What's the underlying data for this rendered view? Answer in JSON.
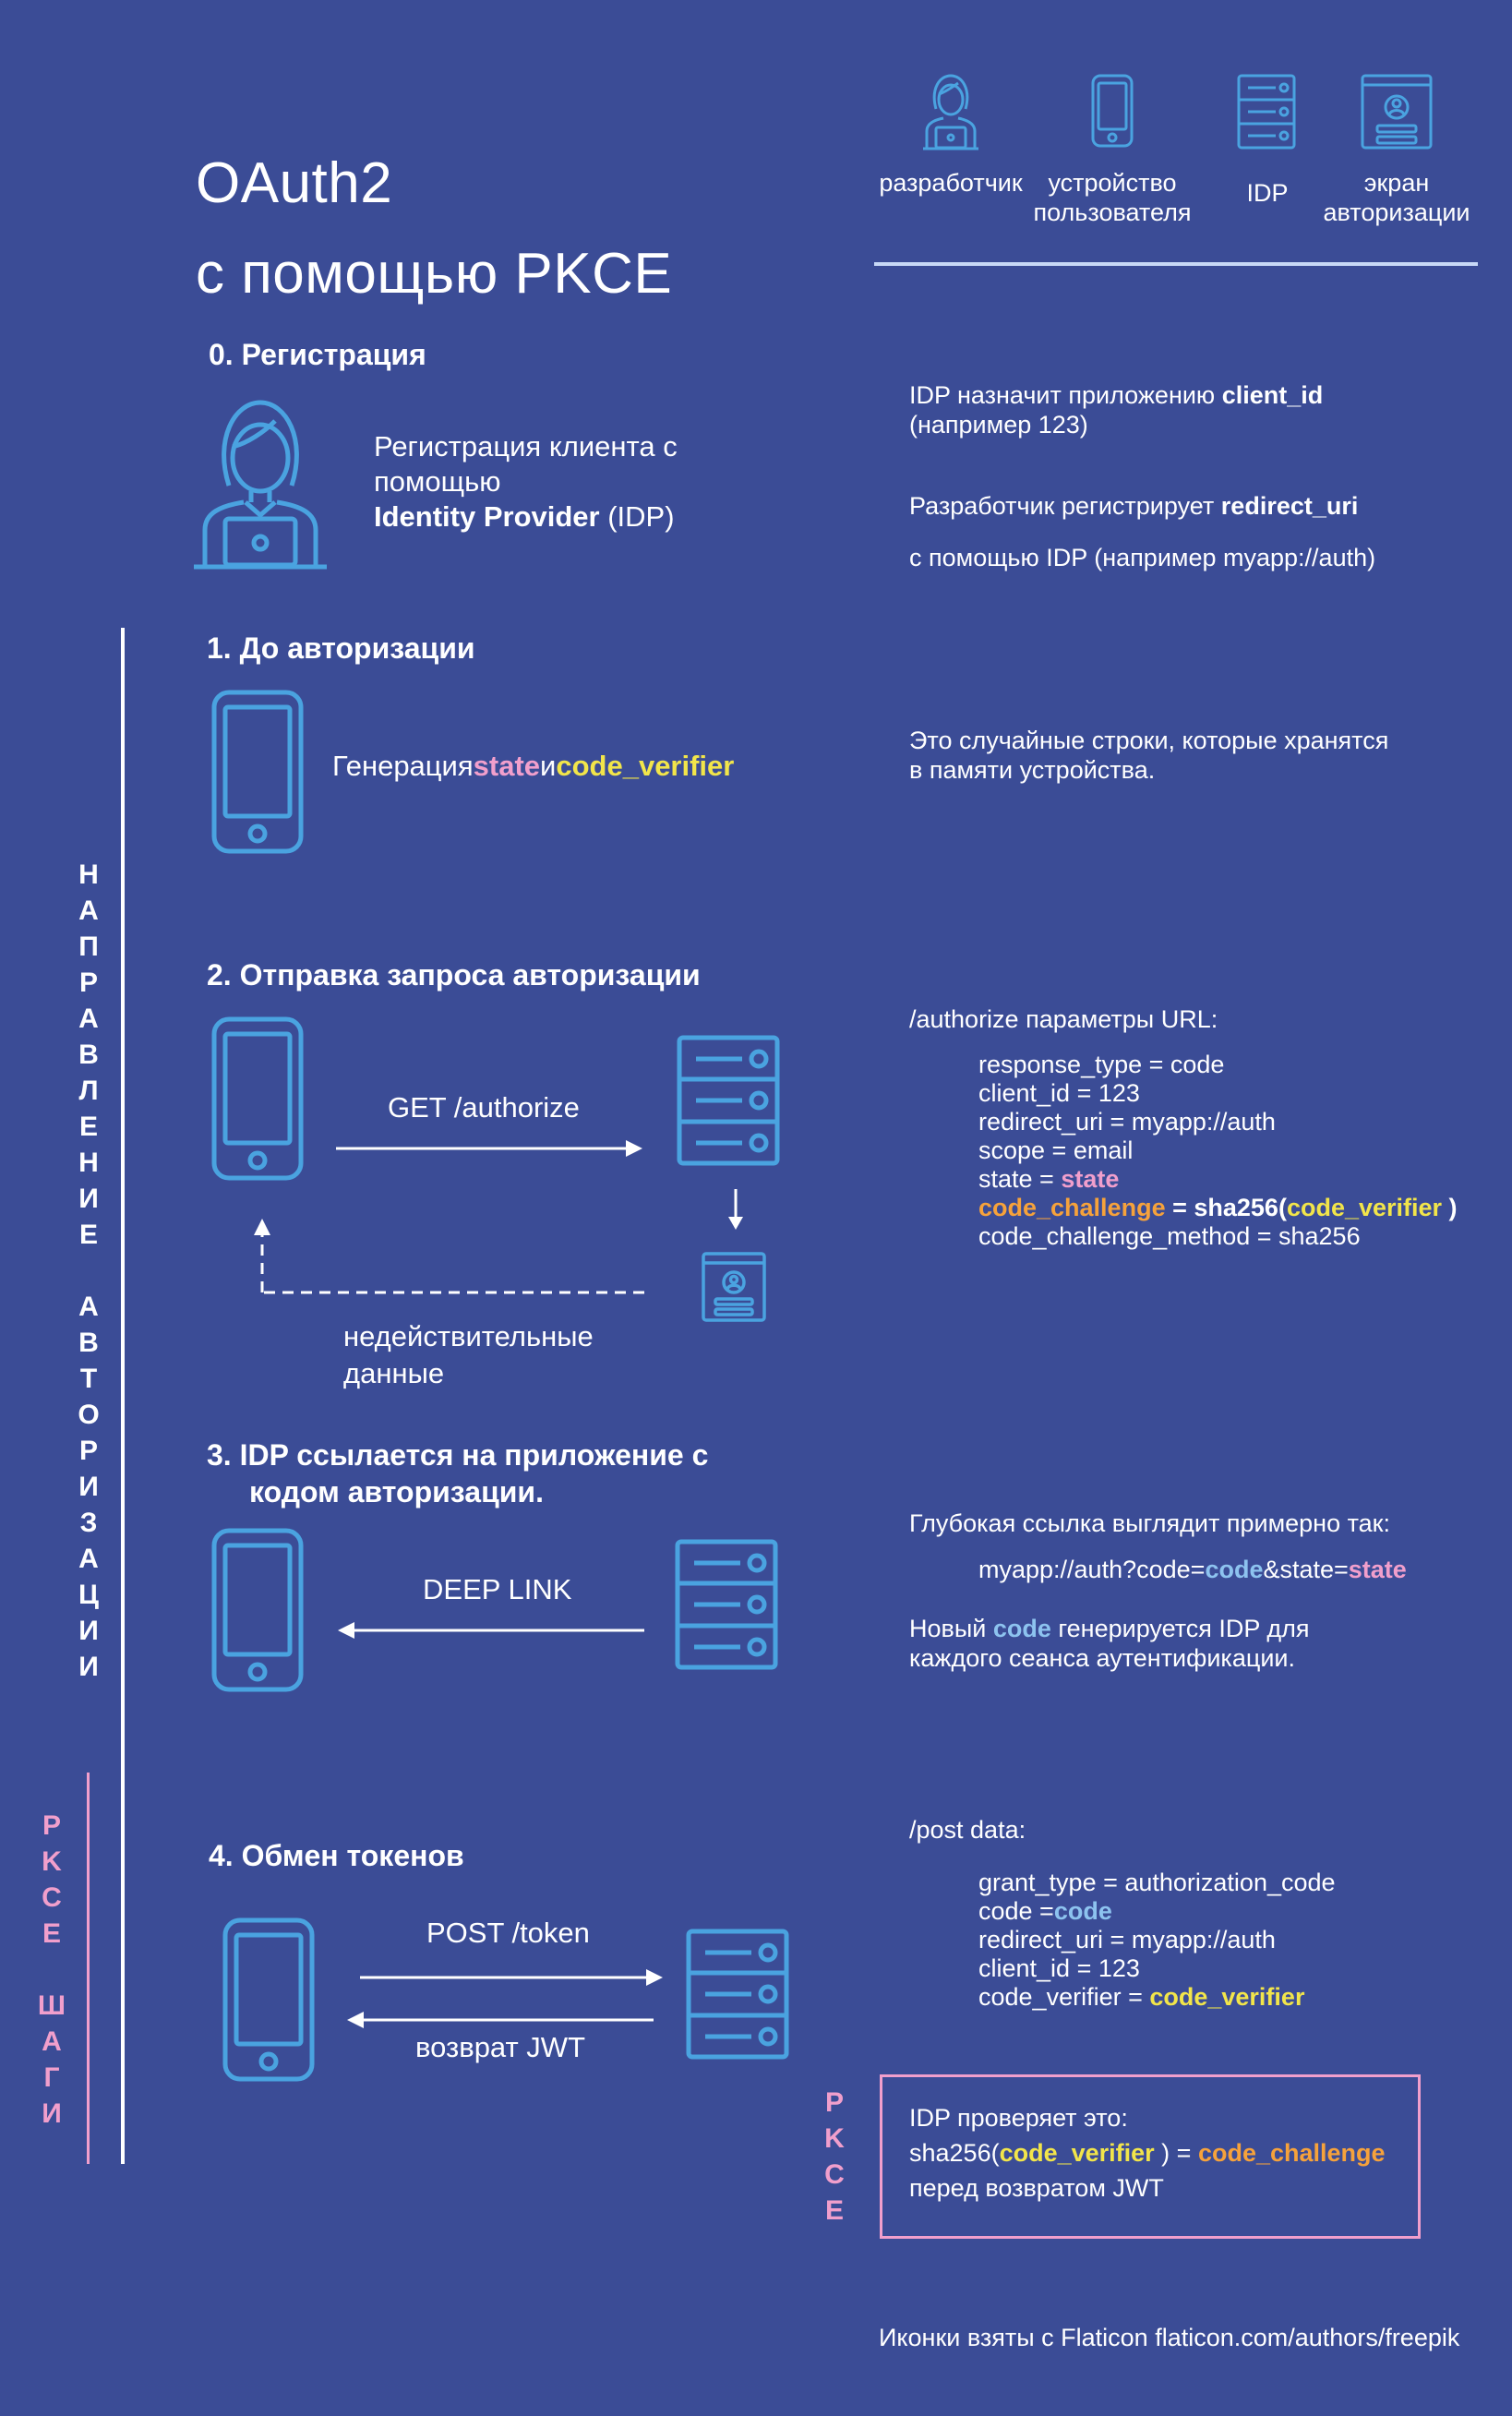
{
  "title": {
    "line1": "OAuth2",
    "line2": "с помощью PKCE"
  },
  "legend": {
    "developer": "разработчик",
    "device": "устройство пользователя",
    "idp": "IDP",
    "auth_screen": "экран авторизации"
  },
  "side": {
    "flow_letters": [
      "Н",
      "А",
      "П",
      "Р",
      "А",
      "В",
      "Л",
      "Е",
      "Н",
      "И",
      "Е",
      "",
      "А",
      "В",
      "Т",
      "О",
      "Р",
      "И",
      "З",
      "А",
      "Ц",
      "И",
      "И"
    ],
    "pkce_letters": [
      "P",
      "K",
      "C",
      "E",
      "",
      "Ш",
      "А",
      "Г",
      "И"
    ],
    "pkce_box_letters": [
      "P",
      "K",
      "C",
      "E"
    ]
  },
  "step0": {
    "heading": "0. Регистрация",
    "desc_line1": "Регистрация клиента с",
    "desc_line2": "помощью",
    "desc_bold": "Identity Provider",
    "desc_tail": " (IDP)",
    "right_1a": "IDP назначит приложению",
    "right_1b": "client_id",
    "right_2": "(например 123)",
    "right_3a": "Разработчик регистрирует",
    "right_3b": "redirect_uri",
    "right_4": "с помощью IDP  (например myapp://auth)"
  },
  "step1": {
    "heading": "1. До авторизации",
    "gen_prefix": "Генерация",
    "gen_state": "state",
    "gen_and": "и",
    "gen_verifier": "code_verifier",
    "right_1": "Это случайные строки, которые хранятся",
    "right_2": "в памяти устройства."
  },
  "step2": {
    "heading": "2. Отправка запроса авторизации",
    "arrow_label": "GET /authorize",
    "invalid_1": "недействительные",
    "invalid_2": "данные",
    "right_title": "/authorize параметры URL:",
    "p1": "response_type = code",
    "p2": "client_id = 123",
    "p3": "redirect_uri = myapp://auth",
    "p4": "scope = email",
    "p5a": "state = ",
    "p5b": "state",
    "p6a": "code_challenge",
    "p6b": " = sha256(",
    "p6c": "code_verifier",
    "p6d": " )",
    "p7": "code_challenge_method = sha256"
  },
  "step3": {
    "heading_1": "3. IDP ссылается на приложение с",
    "heading_2": "кодом авторизации.",
    "arrow_label": "DEEP LINK",
    "right_1": "Глубокая ссылка выглядит примерно так:",
    "link_a": "myapp://auth?code=",
    "link_b": "code",
    "link_c": "&state=",
    "link_d": "state",
    "right_3a": "Новый ",
    "right_3b": "code",
    "right_3c": " генерируется IDP для",
    "right_4": "каждого сеанса аутентификации."
  },
  "step4": {
    "heading": "4. Обмен токенов",
    "post_label": "POST /token",
    "return_label": "возврат JWT",
    "right_title": "/post data:",
    "p1": "grant_type = authorization_code",
    "p2a": "code =",
    "p2b": "code",
    "p3": "redirect_uri = myapp://auth",
    "p4": "client_id = 123",
    "p5a": "code_verifier = ",
    "p5b": "code_verifier"
  },
  "pkce_box": {
    "line1": "IDP проверяет это:",
    "line2a": "sha256(",
    "line2b": "code_verifier",
    "line2c": " ) = ",
    "line2d": "code_challenge",
    "line3": "перед возвратом JWT"
  },
  "footer": "Иконки взяты с  Flaticon flaticon.com/authors/freepik",
  "colors": {
    "background": "#3b4c96",
    "icon_blue": "#4aa3e0",
    "state_pink": "#f19fcc",
    "verifier_yellow": "#f2e54a",
    "challenge_orange": "#f6a23b",
    "code_blue": "#8dc3ef"
  }
}
